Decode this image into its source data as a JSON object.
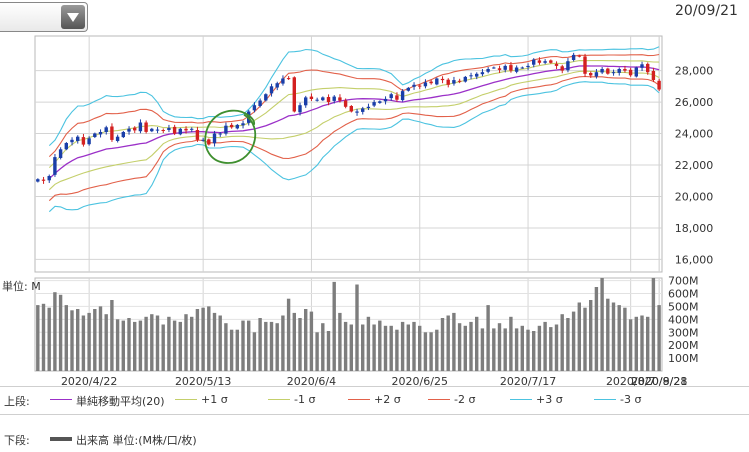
{
  "header": {
    "dropdown_value": "",
    "date_stamp": "20/09/21"
  },
  "chart_data": {
    "type": "candlestick",
    "upper": {
      "y_ticks": [
        16000,
        18000,
        20000,
        22000,
        24000,
        26000,
        28000
      ],
      "y_tick_labels": [
        "16,000",
        "18,000",
        "20,000",
        "22,000",
        "24,000",
        "26,000",
        "28,000"
      ],
      "ylim": [
        15200,
        30200
      ],
      "x_tick_labels": [
        "2020/4/22",
        "2020/5/13",
        "2020/6/4",
        "2020/6/25",
        "2020/7/17",
        "2020/8/7",
        "2020/8/28",
        "2020/9/21"
      ],
      "grid": true,
      "close": [
        21100,
        21000,
        21300,
        22500,
        23000,
        23400,
        23600,
        23800,
        23300,
        23700,
        24000,
        24100,
        24400,
        23600,
        23800,
        24100,
        24300,
        24200,
        24700,
        24100,
        24300,
        24250,
        24200,
        24350,
        24000,
        24300,
        24200,
        24300,
        23600,
        23600,
        23300,
        24000,
        24000,
        24500,
        24400,
        24550,
        24650,
        25400,
        25800,
        26100,
        26500,
        27000,
        27200,
        27500,
        27500,
        25400,
        25800,
        26300,
        26200,
        26150,
        26300,
        26000,
        26350,
        26100,
        25700,
        25400,
        25400,
        25600,
        25700,
        26000,
        26050,
        26200,
        26500,
        26150,
        26700,
        26900,
        27100,
        27000,
        27250,
        27200,
        27500,
        27400,
        27100,
        27400,
        27300,
        27600,
        27700,
        27800,
        27900,
        28100,
        28200,
        28050,
        28300,
        28000,
        28200,
        28200,
        28300,
        28700,
        28500,
        28600,
        28500,
        28300,
        28000,
        28600,
        29000,
        28900,
        27800,
        27700,
        27900,
        28100,
        27800,
        27900,
        28100,
        28000,
        27700,
        28200,
        28400,
        27900,
        27400,
        26800
      ],
      "indicators": [
        "sma20",
        "+1σ",
        "-1σ",
        "+2σ",
        "-2σ",
        "+3σ",
        "-3σ"
      ]
    },
    "lower": {
      "unit_label": "単位: M",
      "y_ticks": [
        100,
        200,
        300,
        400,
        500,
        600,
        700
      ],
      "y_tick_labels": [
        "100M",
        "200M",
        "300M",
        "400M",
        "500M",
        "600M",
        "700M"
      ],
      "ylim": [
        0,
        720
      ],
      "volume": [
        510,
        520,
        490,
        610,
        590,
        510,
        470,
        480,
        430,
        450,
        480,
        500,
        440,
        550,
        400,
        390,
        410,
        380,
        390,
        420,
        440,
        430,
        360,
        420,
        390,
        380,
        440,
        420,
        480,
        490,
        500,
        450,
        430,
        370,
        320,
        320,
        390,
        390,
        300,
        410,
        380,
        380,
        370,
        430,
        560,
        450,
        410,
        480,
        460,
        300,
        370,
        310,
        690,
        450,
        380,
        360,
        670,
        360,
        420,
        360,
        390,
        350,
        350,
        320,
        380,
        360,
        380,
        350,
        300,
        300,
        320,
        410,
        430,
        450,
        370,
        350,
        380,
        420,
        330,
        510,
        330,
        370,
        330,
        420,
        330,
        350,
        320,
        310,
        350,
        380,
        340,
        360,
        440,
        410,
        460,
        530,
        490,
        550,
        650,
        720,
        560,
        530,
        510,
        490,
        400,
        420,
        430,
        420,
        720,
        510
      ]
    }
  },
  "legend": {
    "upper_label": "上段:",
    "lower_label": "下段:",
    "items": [
      {
        "label": "単純移動平均(20)",
        "color": "#9b30c8"
      },
      {
        "label": "+1 σ",
        "color": "#c4cf6b"
      },
      {
        "label": "-1 σ",
        "color": "#c4cf6b"
      },
      {
        "label": "+2 σ",
        "color": "#e2614a"
      },
      {
        "label": "-2 σ",
        "color": "#e2614a"
      },
      {
        "label": "+3 σ",
        "color": "#4cc3e0"
      },
      {
        "label": "-3 σ",
        "color": "#4cc3e0"
      }
    ],
    "volume_item": {
      "label": "出来高 単位:(M株/口/枚)",
      "color": "#555555"
    }
  },
  "colors": {
    "up": "#1a3ea8",
    "down": "#d32020",
    "volume": "#7d7d7d",
    "annotation": "#3f8f2f"
  }
}
